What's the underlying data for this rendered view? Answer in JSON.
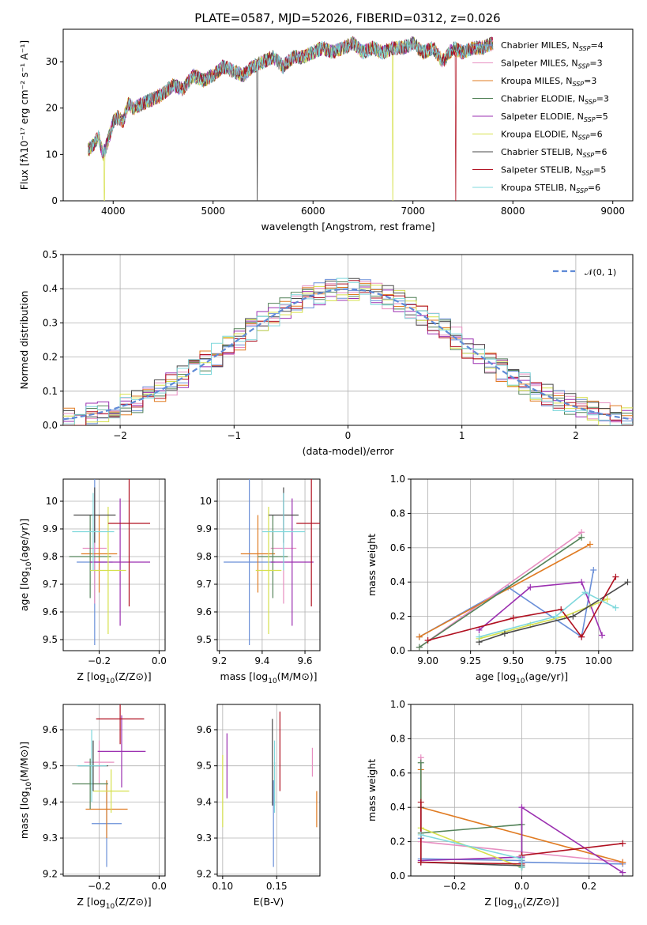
{
  "title": "PLATE=0587, MJD=52026, FIBERID=0312, z=0.026",
  "colors": {
    "Chabrier MILES": "#6a8fd8",
    "Salpeter MILES": "#e78fc1",
    "Kroupa MILES": "#e07b22",
    "Chabrier ELODIE": "#55845a",
    "Salpeter ELODIE": "#9b2fb0",
    "Kroupa ELODIE": "#d6e04c",
    "Chabrier STELIB": "#4a4a4a",
    "Salpeter STELIB": "#b01020",
    "Kroupa STELIB": "#7fd8dc"
  },
  "chart_data": [
    {
      "id": "spectrum",
      "type": "line",
      "xlabel": "wavelength [Angstrom, rest frame]",
      "ylabel": "Flux [fλ10⁻¹⁷ erg cm⁻² s⁻¹ A⁻¹]",
      "xlim": [
        3500,
        9200
      ],
      "ylim": [
        0,
        37
      ],
      "xticks": [
        4000,
        5000,
        6000,
        7000,
        8000,
        9000
      ],
      "yticks": [
        0,
        10,
        20,
        30
      ],
      "grid": false,
      "legend_position": "right",
      "spectrum_x": [
        3750,
        3800,
        3850,
        3900,
        3950,
        4000,
        4050,
        4100,
        4150,
        4200,
        4300,
        4400,
        4500,
        4600,
        4700,
        4800,
        4900,
        5000,
        5100,
        5200,
        5300,
        5400,
        5500,
        5600,
        5700,
        5800,
        5900,
        6000,
        6100,
        6200,
        6300,
        6400,
        6500,
        6600,
        6700,
        6800,
        6900,
        7000,
        7100,
        7200,
        7300,
        7400,
        7500,
        7600,
        7700,
        7800
      ],
      "spectrum_y": [
        11,
        12,
        14,
        10,
        13,
        17,
        18,
        17,
        21,
        20,
        21,
        22,
        23,
        25,
        24,
        27,
        26,
        27,
        29,
        28,
        27,
        29,
        30,
        31,
        29,
        31,
        31,
        32,
        33,
        32,
        33,
        34,
        32,
        33,
        32,
        33,
        33,
        34,
        32,
        33,
        30,
        33,
        32,
        33,
        33,
        34
      ],
      "series": [
        {
          "name": "Chabrier MILES, N_SSP=4",
          "legend_main": "Chabrier MILES, N",
          "legend_sub": "SSP",
          "legend_tail": "=4"
        },
        {
          "name": "Salpeter MILES, N_SSP=3",
          "legend_main": "Salpeter MILES, N",
          "legend_sub": "SSP",
          "legend_tail": "=3"
        },
        {
          "name": "Kroupa MILES, N_SSP=3",
          "legend_main": "Kroupa MILES, N",
          "legend_sub": "SSP",
          "legend_tail": "=3"
        },
        {
          "name": "Chabrier ELODIE, N_SSP=3",
          "legend_main": "Chabrier ELODIE, N",
          "legend_sub": "SSP",
          "legend_tail": "=3"
        },
        {
          "name": "Salpeter ELODIE, N_SSP=5",
          "legend_main": "Salpeter ELODIE, N",
          "legend_sub": "SSP",
          "legend_tail": "=5"
        },
        {
          "name": "Kroupa ELODIE, N_SSP=6",
          "legend_main": "Kroupa ELODIE, N",
          "legend_sub": "SSP",
          "legend_tail": "=6"
        },
        {
          "name": "Chabrier STELIB, N_SSP=6",
          "legend_main": "Chabrier STELIB, N",
          "legend_sub": "SSP",
          "legend_tail": "=6"
        },
        {
          "name": "Salpeter STELIB, N_SSP=5",
          "legend_main": "Salpeter STELIB, N",
          "legend_sub": "SSP",
          "legend_tail": "=5"
        },
        {
          "name": "Kroupa STELIB, N_SSP=6",
          "legend_main": "Kroupa STELIB, N",
          "legend_sub": "SSP",
          "legend_tail": "=6"
        }
      ]
    },
    {
      "id": "residuals",
      "type": "histogram",
      "xlabel": "(data-model)/error",
      "ylabel": "Normed distribution",
      "xlim": [
        -2.5,
        2.5
      ],
      "ylim": [
        0,
        0.5
      ],
      "xticks": [
        -2,
        -1,
        0,
        1,
        2
      ],
      "xtick_labels": [
        "−2",
        "−1",
        "0",
        "1",
        "2"
      ],
      "yticks": [
        0.0,
        0.1,
        0.2,
        0.3,
        0.4,
        0.5
      ],
      "ytick_labels": [
        "0.0",
        "0.1",
        "0.2",
        "0.3",
        "0.4",
        "0.5"
      ],
      "grid": true,
      "legend_position": "top-right",
      "reference_label": "𝒩(0, 1)",
      "bin_width": 0.1
    },
    {
      "id": "age_vs_Z",
      "type": "errorbar",
      "xlabel": "Z [log10(Z/Z⊙)]",
      "ylabel": "age [log10(age/yr)]",
      "xlim": [
        -0.32,
        0.02
      ],
      "ylim": [
        9.46,
        10.08
      ],
      "xticks": [
        -0.2,
        0.0
      ],
      "xtick_labels": [
        "−0.2",
        "0.0"
      ],
      "yticks": [
        9.5,
        9.6,
        9.7,
        9.8,
        9.9,
        10.0
      ],
      "grid": true,
      "points": [
        {
          "series": "Chabrier MILES",
          "x": -0.215,
          "xerr": 0.06,
          "y": 9.78,
          "yerr": 0.3
        },
        {
          "series": "Salpeter MILES",
          "x": -0.215,
          "xerr": 0.04,
          "y": 9.83,
          "yerr": 0.2
        },
        {
          "series": "Kroupa MILES",
          "x": -0.2,
          "xerr": 0.06,
          "y": 9.81,
          "yerr": 0.14
        },
        {
          "series": "Chabrier ELODIE",
          "x": -0.23,
          "xerr": 0.07,
          "y": 9.8,
          "yerr": 0.15
        },
        {
          "series": "Salpeter ELODIE",
          "x": -0.13,
          "xerr": 0.1,
          "y": 9.78,
          "yerr": 0.23
        },
        {
          "series": "Kroupa ELODIE",
          "x": -0.17,
          "xerr": 0.06,
          "y": 9.75,
          "yerr": 0.23
        },
        {
          "series": "Chabrier STELIB",
          "x": -0.215,
          "xerr": 0.07,
          "y": 9.95,
          "yerr": 0.1
        },
        {
          "series": "Salpeter STELIB",
          "x": -0.1,
          "xerr": 0.07,
          "y": 9.92,
          "yerr": 0.3
        },
        {
          "series": "Kroupa STELIB",
          "x": -0.22,
          "xerr": 0.07,
          "y": 9.89,
          "yerr": 0.14
        }
      ]
    },
    {
      "id": "age_vs_mass",
      "type": "errorbar",
      "xlabel": "mass [log10(M/M⊙)]",
      "ylabel": "",
      "xlim": [
        9.19,
        9.67
      ],
      "ylim": [
        9.46,
        10.08
      ],
      "xticks": [
        9.2,
        9.4,
        9.6
      ],
      "xtick_labels": [
        "9.2",
        "9.4",
        "9.6"
      ],
      "yticks": [
        9.5,
        9.6,
        9.7,
        9.8,
        9.9,
        10.0
      ],
      "grid": true,
      "points": [
        {
          "series": "Chabrier MILES",
          "x": 9.34,
          "xerr": 0.12,
          "y": 9.78,
          "yerr": 0.3
        },
        {
          "series": "Salpeter MILES",
          "x": 9.5,
          "xerr": 0.06,
          "y": 9.83,
          "yerr": 0.2
        },
        {
          "series": "Kroupa MILES",
          "x": 9.38,
          "xerr": 0.08,
          "y": 9.81,
          "yerr": 0.14
        },
        {
          "series": "Chabrier ELODIE",
          "x": 9.45,
          "xerr": 0.07,
          "y": 9.8,
          "yerr": 0.15
        },
        {
          "series": "Salpeter ELODIE",
          "x": 9.54,
          "xerr": 0.1,
          "y": 9.78,
          "yerr": 0.23
        },
        {
          "series": "Kroupa ELODIE",
          "x": 9.43,
          "xerr": 0.06,
          "y": 9.75,
          "yerr": 0.23
        },
        {
          "series": "Chabrier STELIB",
          "x": 9.5,
          "xerr": 0.07,
          "y": 9.95,
          "yerr": 0.1
        },
        {
          "series": "Salpeter STELIB",
          "x": 9.63,
          "xerr": 0.07,
          "y": 9.92,
          "yerr": 0.3
        },
        {
          "series": "Kroupa STELIB",
          "x": 9.5,
          "xerr": 0.1,
          "y": 9.89,
          "yerr": 0.14
        }
      ]
    },
    {
      "id": "weight_vs_age",
      "type": "line",
      "xlabel": "age [log10(age/yr)]",
      "ylabel": "mass weight",
      "xlim": [
        8.9,
        10.2
      ],
      "ylim": [
        0,
        1
      ],
      "xticks": [
        9.0,
        9.25,
        9.5,
        9.75,
        10.0
      ],
      "xtick_labels": [
        "9.00",
        "9.25",
        "9.50",
        "9.75",
        "10.00"
      ],
      "yticks": [
        0.0,
        0.2,
        0.4,
        0.6,
        0.8,
        1.0
      ],
      "ytick_labels": [
        "0.0",
        "0.2",
        "0.4",
        "0.6",
        "0.8",
        "1.0"
      ],
      "grid": true,
      "series": [
        {
          "series": "Chabrier MILES",
          "x": [
            8.95,
            9.47,
            9.9,
            9.97
          ],
          "y": [
            0.08,
            0.37,
            0.08,
            0.47
          ]
        },
        {
          "series": "Salpeter MILES",
          "x": [
            8.95,
            9.9
          ],
          "y": [
            0.02,
            0.69
          ]
        },
        {
          "series": "Kroupa MILES",
          "x": [
            8.95,
            9.95
          ],
          "y": [
            0.08,
            0.62
          ]
        },
        {
          "series": "Chabrier ELODIE",
          "x": [
            8.95,
            9.9
          ],
          "y": [
            0.02,
            0.66
          ]
        },
        {
          "series": "Salpeter ELODIE",
          "x": [
            9.3,
            9.6,
            9.9,
            10.02
          ],
          "y": [
            0.12,
            0.37,
            0.4,
            0.09
          ]
        },
        {
          "series": "Kroupa ELODIE",
          "x": [
            9.3,
            9.6,
            9.8,
            9.95,
            10.05
          ],
          "y": [
            0.07,
            0.15,
            0.2,
            0.26,
            0.3
          ]
        },
        {
          "series": "Chabrier STELIB",
          "x": [
            9.3,
            9.45,
            9.85,
            10.17
          ],
          "y": [
            0.05,
            0.1,
            0.2,
            0.4
          ]
        },
        {
          "series": "Salpeter STELIB",
          "x": [
            9.0,
            9.5,
            9.78,
            9.9,
            10.1
          ],
          "y": [
            0.06,
            0.19,
            0.24,
            0.08,
            0.43
          ]
        },
        {
          "series": "Kroupa STELIB",
          "x": [
            9.3,
            9.75,
            9.92,
            10.1
          ],
          "y": [
            0.08,
            0.2,
            0.34,
            0.25
          ]
        }
      ]
    },
    {
      "id": "mass_vs_Z",
      "type": "errorbar",
      "xlabel": "Z [log10(Z/Z⊙)]",
      "ylabel": "mass [log10(M/M⊙)]",
      "xlim": [
        -0.32,
        0.02
      ],
      "ylim": [
        9.195,
        9.67
      ],
      "xticks": [
        -0.2,
        0.0
      ],
      "xtick_labels": [
        "−0.2",
        "0.0"
      ],
      "yticks": [
        9.2,
        9.3,
        9.4,
        9.5,
        9.6
      ],
      "grid": true,
      "points": [
        {
          "series": "Chabrier MILES",
          "x": -0.175,
          "xerr": 0.05,
          "y": 9.34,
          "yerr": 0.12
        },
        {
          "series": "Salpeter MILES",
          "x": -0.2,
          "xerr": 0.05,
          "y": 9.51,
          "yerr": 0.06
        },
        {
          "series": "Kroupa MILES",
          "x": -0.175,
          "xerr": 0.07,
          "y": 9.38,
          "yerr": 0.08
        },
        {
          "series": "Chabrier ELODIE",
          "x": -0.23,
          "xerr": 0.06,
          "y": 9.45,
          "yerr": 0.07
        },
        {
          "series": "Salpeter ELODIE",
          "x": -0.125,
          "xerr": 0.08,
          "y": 9.54,
          "yerr": 0.1
        },
        {
          "series": "Kroupa ELODIE",
          "x": -0.16,
          "xerr": 0.06,
          "y": 9.43,
          "yerr": 0.06
        },
        {
          "series": "Chabrier STELIB",
          "x": -0.22,
          "xerr": 0.05,
          "y": 9.5,
          "yerr": 0.07
        },
        {
          "series": "Salpeter STELIB",
          "x": -0.13,
          "xerr": 0.08,
          "y": 9.63,
          "yerr": 0.07
        },
        {
          "series": "Kroupa STELIB",
          "x": -0.225,
          "xerr": 0.05,
          "y": 9.5,
          "yerr": 0.1
        }
      ]
    },
    {
      "id": "mass_vs_EBV",
      "type": "errorbar",
      "xlabel": "E(B-V)",
      "ylabel": "",
      "xlim": [
        0.095,
        0.19
      ],
      "ylim": [
        9.195,
        9.67
      ],
      "xticks": [
        0.1,
        0.15
      ],
      "xtick_labels": [
        "0.10",
        "0.15"
      ],
      "yticks": [
        9.2,
        9.3,
        9.4,
        9.5,
        9.6
      ],
      "grid": true,
      "points": [
        {
          "series": "Chabrier MILES",
          "x": 0.147,
          "y": 9.34,
          "yerr": 0.12
        },
        {
          "series": "Salpeter MILES",
          "x": 0.183,
          "y": 9.51,
          "yerr": 0.04
        },
        {
          "series": "Kroupa MILES",
          "x": 0.187,
          "y": 9.38,
          "yerr": 0.05
        },
        {
          "series": "Chabrier ELODIE",
          "x": 0.148,
          "y": 9.45,
          "yerr": 0.06
        },
        {
          "series": "Salpeter ELODIE",
          "x": 0.104,
          "y": 9.5,
          "yerr": 0.09
        },
        {
          "series": "Kroupa ELODIE",
          "x": 0.1,
          "y": 9.43,
          "yerr": 0.1
        },
        {
          "series": "Chabrier STELIB",
          "x": 0.146,
          "y": 9.51,
          "yerr": 0.12
        },
        {
          "series": "Salpeter STELIB",
          "x": 0.153,
          "y": 9.54,
          "yerr": 0.11
        },
        {
          "series": "Kroupa STELIB",
          "x": 0.148,
          "y": 9.47,
          "yerr": 0.1
        }
      ]
    },
    {
      "id": "weight_vs_Z",
      "type": "line",
      "xlabel": "Z [log10(Z/Z⊙)]",
      "ylabel": "mass weight",
      "xlim": [
        -0.33,
        0.33
      ],
      "ylim": [
        0,
        1
      ],
      "xticks": [
        -0.2,
        0.0,
        0.2
      ],
      "xtick_labels": [
        "−0.2",
        "0.0",
        "0.2"
      ],
      "yticks": [
        0.0,
        0.2,
        0.4,
        0.6,
        0.8,
        1.0
      ],
      "ytick_labels": [
        "0.0",
        "0.2",
        "0.4",
        "0.6",
        "0.8",
        "1.0"
      ],
      "grid": true,
      "series": [
        {
          "series": "Chabrier MILES",
          "x": [
            -0.3,
            -0.3,
            0.0,
            0.0,
            0.3
          ],
          "y": [
            0.22,
            0.1,
            0.09,
            0.08,
            0.07
          ]
        },
        {
          "series": "Salpeter MILES",
          "x": [
            -0.3,
            -0.3,
            0.3
          ],
          "y": [
            0.69,
            0.2,
            0.08
          ]
        },
        {
          "series": "Kroupa MILES",
          "x": [
            -0.3,
            -0.3,
            0.3
          ],
          "y": [
            0.62,
            0.4,
            0.08
          ]
        },
        {
          "series": "Chabrier ELODIE",
          "x": [
            -0.3,
            -0.3,
            0.0,
            0.0
          ],
          "y": [
            0.66,
            0.25,
            0.3,
            0.05
          ]
        },
        {
          "series": "Salpeter ELODIE",
          "x": [
            -0.3,
            0.0,
            0.0,
            0.3
          ],
          "y": [
            0.09,
            0.11,
            0.4,
            0.02
          ]
        },
        {
          "series": "Kroupa ELODIE",
          "x": [
            -0.3,
            0.0
          ],
          "y": [
            0.28,
            0.05
          ]
        },
        {
          "series": "Chabrier STELIB",
          "x": [
            -0.3,
            -0.3,
            0.0,
            0.0
          ],
          "y": [
            0.4,
            0.08,
            0.06,
            0.05
          ]
        },
        {
          "series": "Salpeter STELIB",
          "x": [
            -0.3,
            -0.3,
            0.0,
            0.0,
            0.3
          ],
          "y": [
            0.43,
            0.08,
            0.07,
            0.12,
            0.19
          ]
        },
        {
          "series": "Kroupa STELIB",
          "x": [
            -0.3,
            0.0,
            0.0
          ],
          "y": [
            0.24,
            0.1,
            0.05
          ]
        }
      ]
    }
  ]
}
